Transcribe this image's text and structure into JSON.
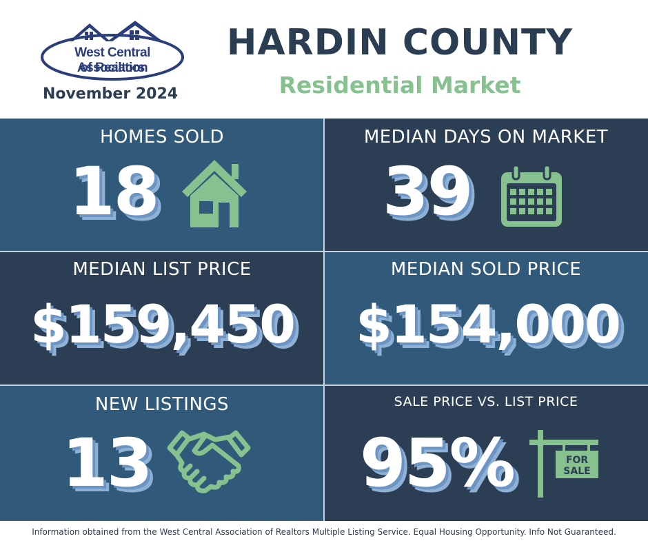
{
  "header": {
    "logo_line1": "West Central Association",
    "logo_line2": "of Realtors",
    "date": "November 2024",
    "title": "HARDIN COUNTY",
    "subtitle": "Residential Market"
  },
  "tiles": {
    "homes_sold": {
      "label": "HOMES SOLD",
      "value": "18",
      "icon": "house-icon"
    },
    "days_on_market": {
      "label": "MEDIAN DAYS ON MARKET",
      "value": "39",
      "icon": "calendar-icon"
    },
    "list_price": {
      "label": "MEDIAN LIST PRICE",
      "value": "$159,450"
    },
    "sold_price": {
      "label": "MEDIAN SOLD PRICE",
      "value": "$154,000"
    },
    "new_listings": {
      "label": "NEW LISTINGS",
      "value": "13",
      "icon": "handshake-icon"
    },
    "sale_vs_list": {
      "label": "SALE PRICE VS. LIST PRICE",
      "value": "95%",
      "icon": "for-sale-sign-icon",
      "sign_line1": "FOR",
      "sign_line2": "SALE"
    }
  },
  "footer": {
    "text": "Information obtained from the West Central Association of Realtors Multiple Listing Service. Equal Housing Opportunity. Info Not Guaranteed."
  },
  "colors": {
    "tile_light": "#31597a",
    "tile_dark": "#2b3e54",
    "accent_green": "#86c18f",
    "navy": "#2b3d52"
  }
}
